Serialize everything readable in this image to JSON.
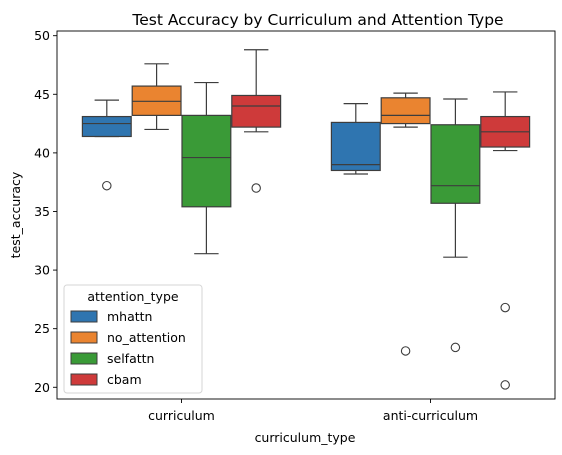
{
  "chart_data": {
    "type": "box",
    "title": "Test Accuracy by Curriculum and Attention Type",
    "xlabel": "curriculum_type",
    "ylabel": "test_accuracy",
    "ylim": [
      19,
      50.4
    ],
    "yticks": [
      20,
      25,
      30,
      35,
      40,
      45,
      50
    ],
    "categories": [
      "curriculum",
      "anti-curriculum"
    ],
    "legend": {
      "title": "attention_type",
      "position": "lower-left"
    },
    "series": [
      {
        "name": "mhattn",
        "color": "#2f75b0",
        "boxes": [
          {
            "whislo": 41.4,
            "q1": 41.4,
            "med": 42.5,
            "q3": 43.1,
            "whishi": 44.5,
            "fliers": [
              37.2
            ]
          },
          {
            "whislo": 38.2,
            "q1": 38.5,
            "med": 39.0,
            "q3": 42.6,
            "whishi": 44.2,
            "fliers": []
          }
        ]
      },
      {
        "name": "no_attention",
        "color": "#ea8430",
        "boxes": [
          {
            "whislo": 42.0,
            "q1": 43.2,
            "med": 44.4,
            "q3": 45.7,
            "whishi": 47.6,
            "fliers": []
          },
          {
            "whislo": 42.2,
            "q1": 42.5,
            "med": 43.2,
            "q3": 44.7,
            "whishi": 45.1,
            "fliers": [
              23.1
            ]
          }
        ]
      },
      {
        "name": "selfattn",
        "color": "#3a9a37",
        "boxes": [
          {
            "whislo": 31.4,
            "q1": 35.4,
            "med": 39.6,
            "q3": 43.2,
            "whishi": 46.0,
            "fliers": []
          },
          {
            "whislo": 31.1,
            "q1": 35.7,
            "med": 37.2,
            "q3": 42.4,
            "whishi": 44.6,
            "fliers": [
              23.4
            ]
          }
        ]
      },
      {
        "name": "cbam",
        "color": "#ce3a3a",
        "boxes": [
          {
            "whislo": 41.8,
            "q1": 42.2,
            "med": 44.0,
            "q3": 44.9,
            "whishi": 48.8,
            "fliers": [
              37.0
            ]
          },
          {
            "whislo": 40.2,
            "q1": 40.5,
            "med": 41.8,
            "q3": 43.1,
            "whishi": 45.2,
            "fliers": [
              26.8,
              20.2
            ]
          }
        ]
      }
    ]
  }
}
